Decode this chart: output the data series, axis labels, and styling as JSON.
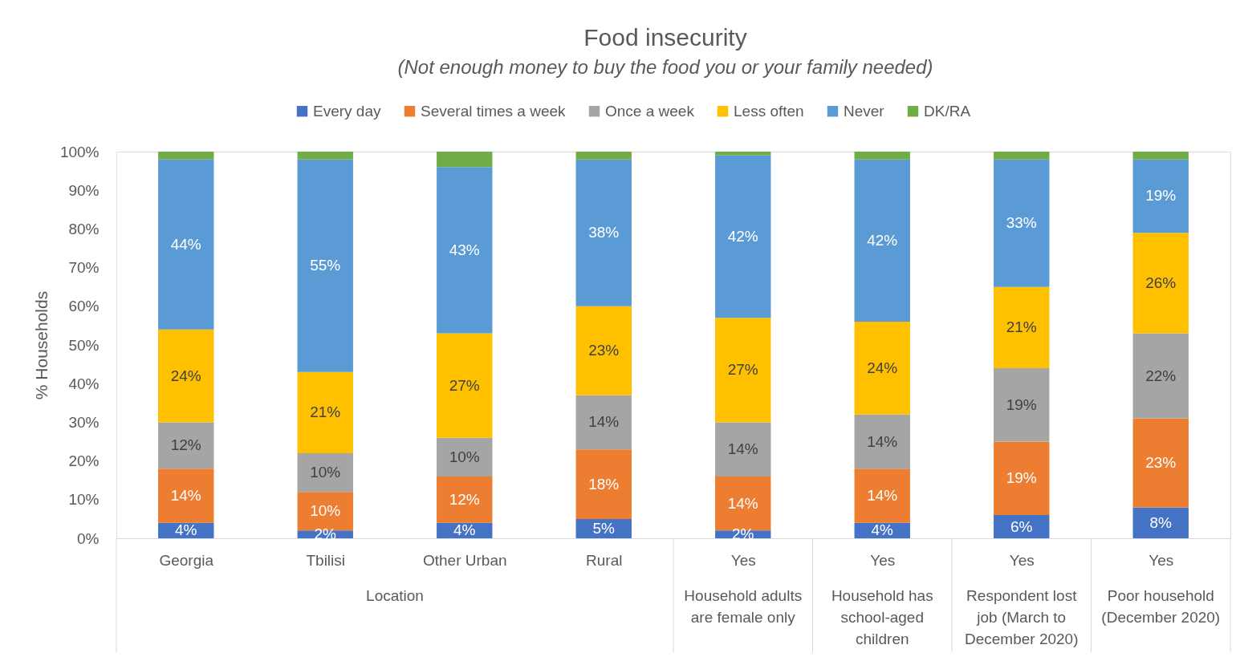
{
  "chart_data": {
    "type": "bar",
    "title": "Food insecurity",
    "subtitle": "(Not enough money to buy the food you or your family needed)",
    "ylabel": "% Households",
    "categories": [
      "Georgia",
      "Tbilisi",
      "Other Urban",
      "Rural",
      "Yes",
      "Yes",
      "Yes",
      "Yes"
    ],
    "stacked": true,
    "ylim": [
      0,
      100
    ],
    "yticks": [
      {
        "value": 0,
        "label": "0%"
      },
      {
        "value": 10,
        "label": "10%"
      },
      {
        "value": 20,
        "label": "20%"
      },
      {
        "value": 30,
        "label": "30%"
      },
      {
        "value": 40,
        "label": "40%"
      },
      {
        "value": 50,
        "label": "50%"
      },
      {
        "value": 60,
        "label": "60%"
      },
      {
        "value": 70,
        "label": "70%"
      },
      {
        "value": 80,
        "label": "80%"
      },
      {
        "value": 90,
        "label": "90%"
      },
      {
        "value": 100,
        "label": "100%"
      }
    ],
    "legend": "top",
    "annotations": [
      "Location",
      "Household adults are female only",
      "Household has school-aged children",
      "Respondent lost job (March to December 2020)",
      "Poor household (December 2020)"
    ],
    "series": [
      {
        "name": "Every day",
        "color": "#4472c4",
        "values": [
          4,
          2,
          4,
          5,
          2,
          4,
          6,
          8
        ],
        "value_labels": [
          "4%",
          "2%",
          "4%",
          "5%",
          "2%",
          "4%",
          "6%",
          "8%"
        ]
      },
      {
        "name": "Several times a week",
        "color": "#ed7d31",
        "values": [
          14,
          10,
          12,
          18,
          14,
          14,
          19,
          23
        ],
        "value_labels": [
          "14%",
          "10%",
          "12%",
          "18%",
          "14%",
          "14%",
          "19%",
          "23%"
        ]
      },
      {
        "name": "Once a week",
        "color": "#a5a5a5",
        "values": [
          12,
          10,
          10,
          14,
          14,
          14,
          19,
          22
        ],
        "value_labels": [
          "12%",
          "10%",
          "10%",
          "14%",
          "14%",
          "14%",
          "19%",
          "22%"
        ]
      },
      {
        "name": "Less often",
        "color": "#ffc000",
        "values": [
          24,
          21,
          27,
          23,
          27,
          24,
          21,
          26
        ],
        "value_labels": [
          "24%",
          "21%",
          "27%",
          "23%",
          "27%",
          "24%",
          "21%",
          "26%"
        ]
      },
      {
        "name": "Never",
        "color": "#5b9bd5",
        "values": [
          44,
          55,
          43,
          38,
          42,
          42,
          33,
          19
        ],
        "value_labels": [
          "44%",
          "55%",
          "43%",
          "38%",
          "42%",
          "42%",
          "33%",
          "19%"
        ]
      },
      {
        "name": "DK/RA",
        "color": "#70ad47",
        "values": [
          2,
          2,
          4,
          2,
          1,
          2,
          2,
          2
        ]
      }
    ]
  }
}
